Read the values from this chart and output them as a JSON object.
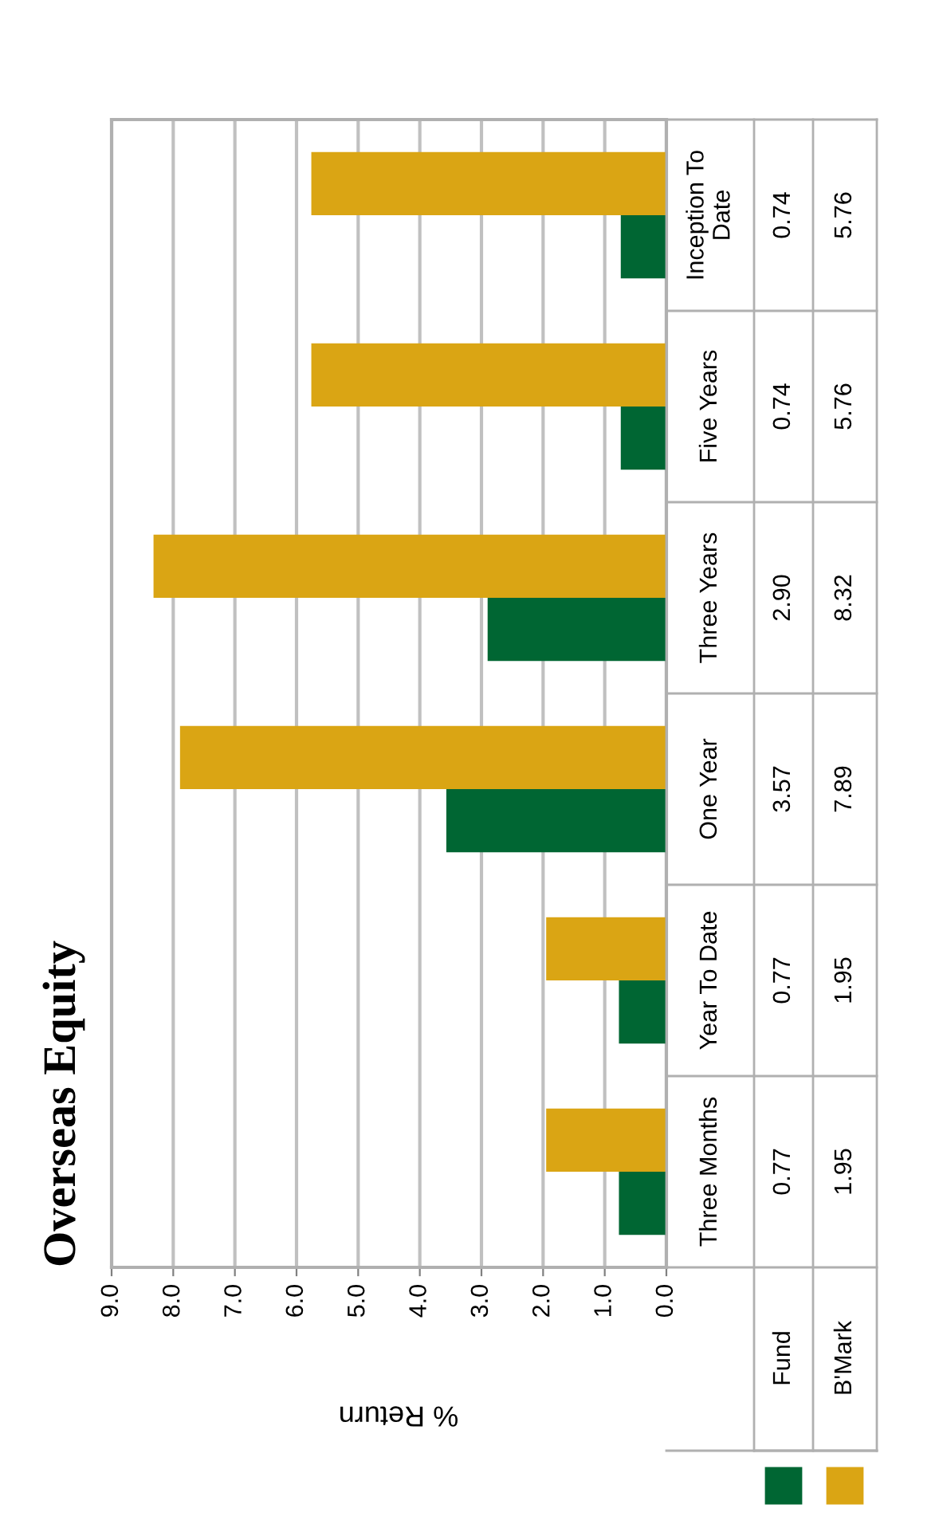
{
  "chart_data": {
    "type": "bar",
    "title": "Overseas Equity",
    "xlabel": "% Return",
    "orientation": "horizontal",
    "categories": [
      "Inception To Date",
      "Five Years",
      "Three Years",
      "One Year",
      "Year To Date",
      "Three Months"
    ],
    "series": [
      {
        "name": "Fund",
        "color": "#006633",
        "values": [
          0.74,
          0.74,
          2.9,
          3.57,
          0.77,
          0.77
        ],
        "value_labels": [
          "0.74",
          "0.74",
          "2.90",
          "3.57",
          "0.77",
          "0.77"
        ]
      },
      {
        "name": "B'Mark",
        "color": "#daa514",
        "values": [
          5.76,
          5.76,
          8.32,
          7.89,
          1.95,
          1.95
        ],
        "value_labels": [
          "5.76",
          "5.76",
          "8.32",
          "7.89",
          "1.95",
          "1.95"
        ]
      }
    ],
    "xlim": [
      9.0,
      0.0
    ],
    "xticks": [
      {
        "value": 0,
        "label": "0.0"
      },
      {
        "value": 1,
        "label": "1.0"
      },
      {
        "value": 2,
        "label": "2.0"
      },
      {
        "value": 3,
        "label": "3.0"
      },
      {
        "value": 4,
        "label": "4.0"
      },
      {
        "value": 5,
        "label": "5.0"
      },
      {
        "value": 6,
        "label": "6.0"
      },
      {
        "value": 7,
        "label": "7.0"
      },
      {
        "value": 8,
        "label": "8.0"
      },
      {
        "value": 9,
        "label": "9.0"
      }
    ],
    "grid": "x",
    "legend": "bottom right"
  }
}
